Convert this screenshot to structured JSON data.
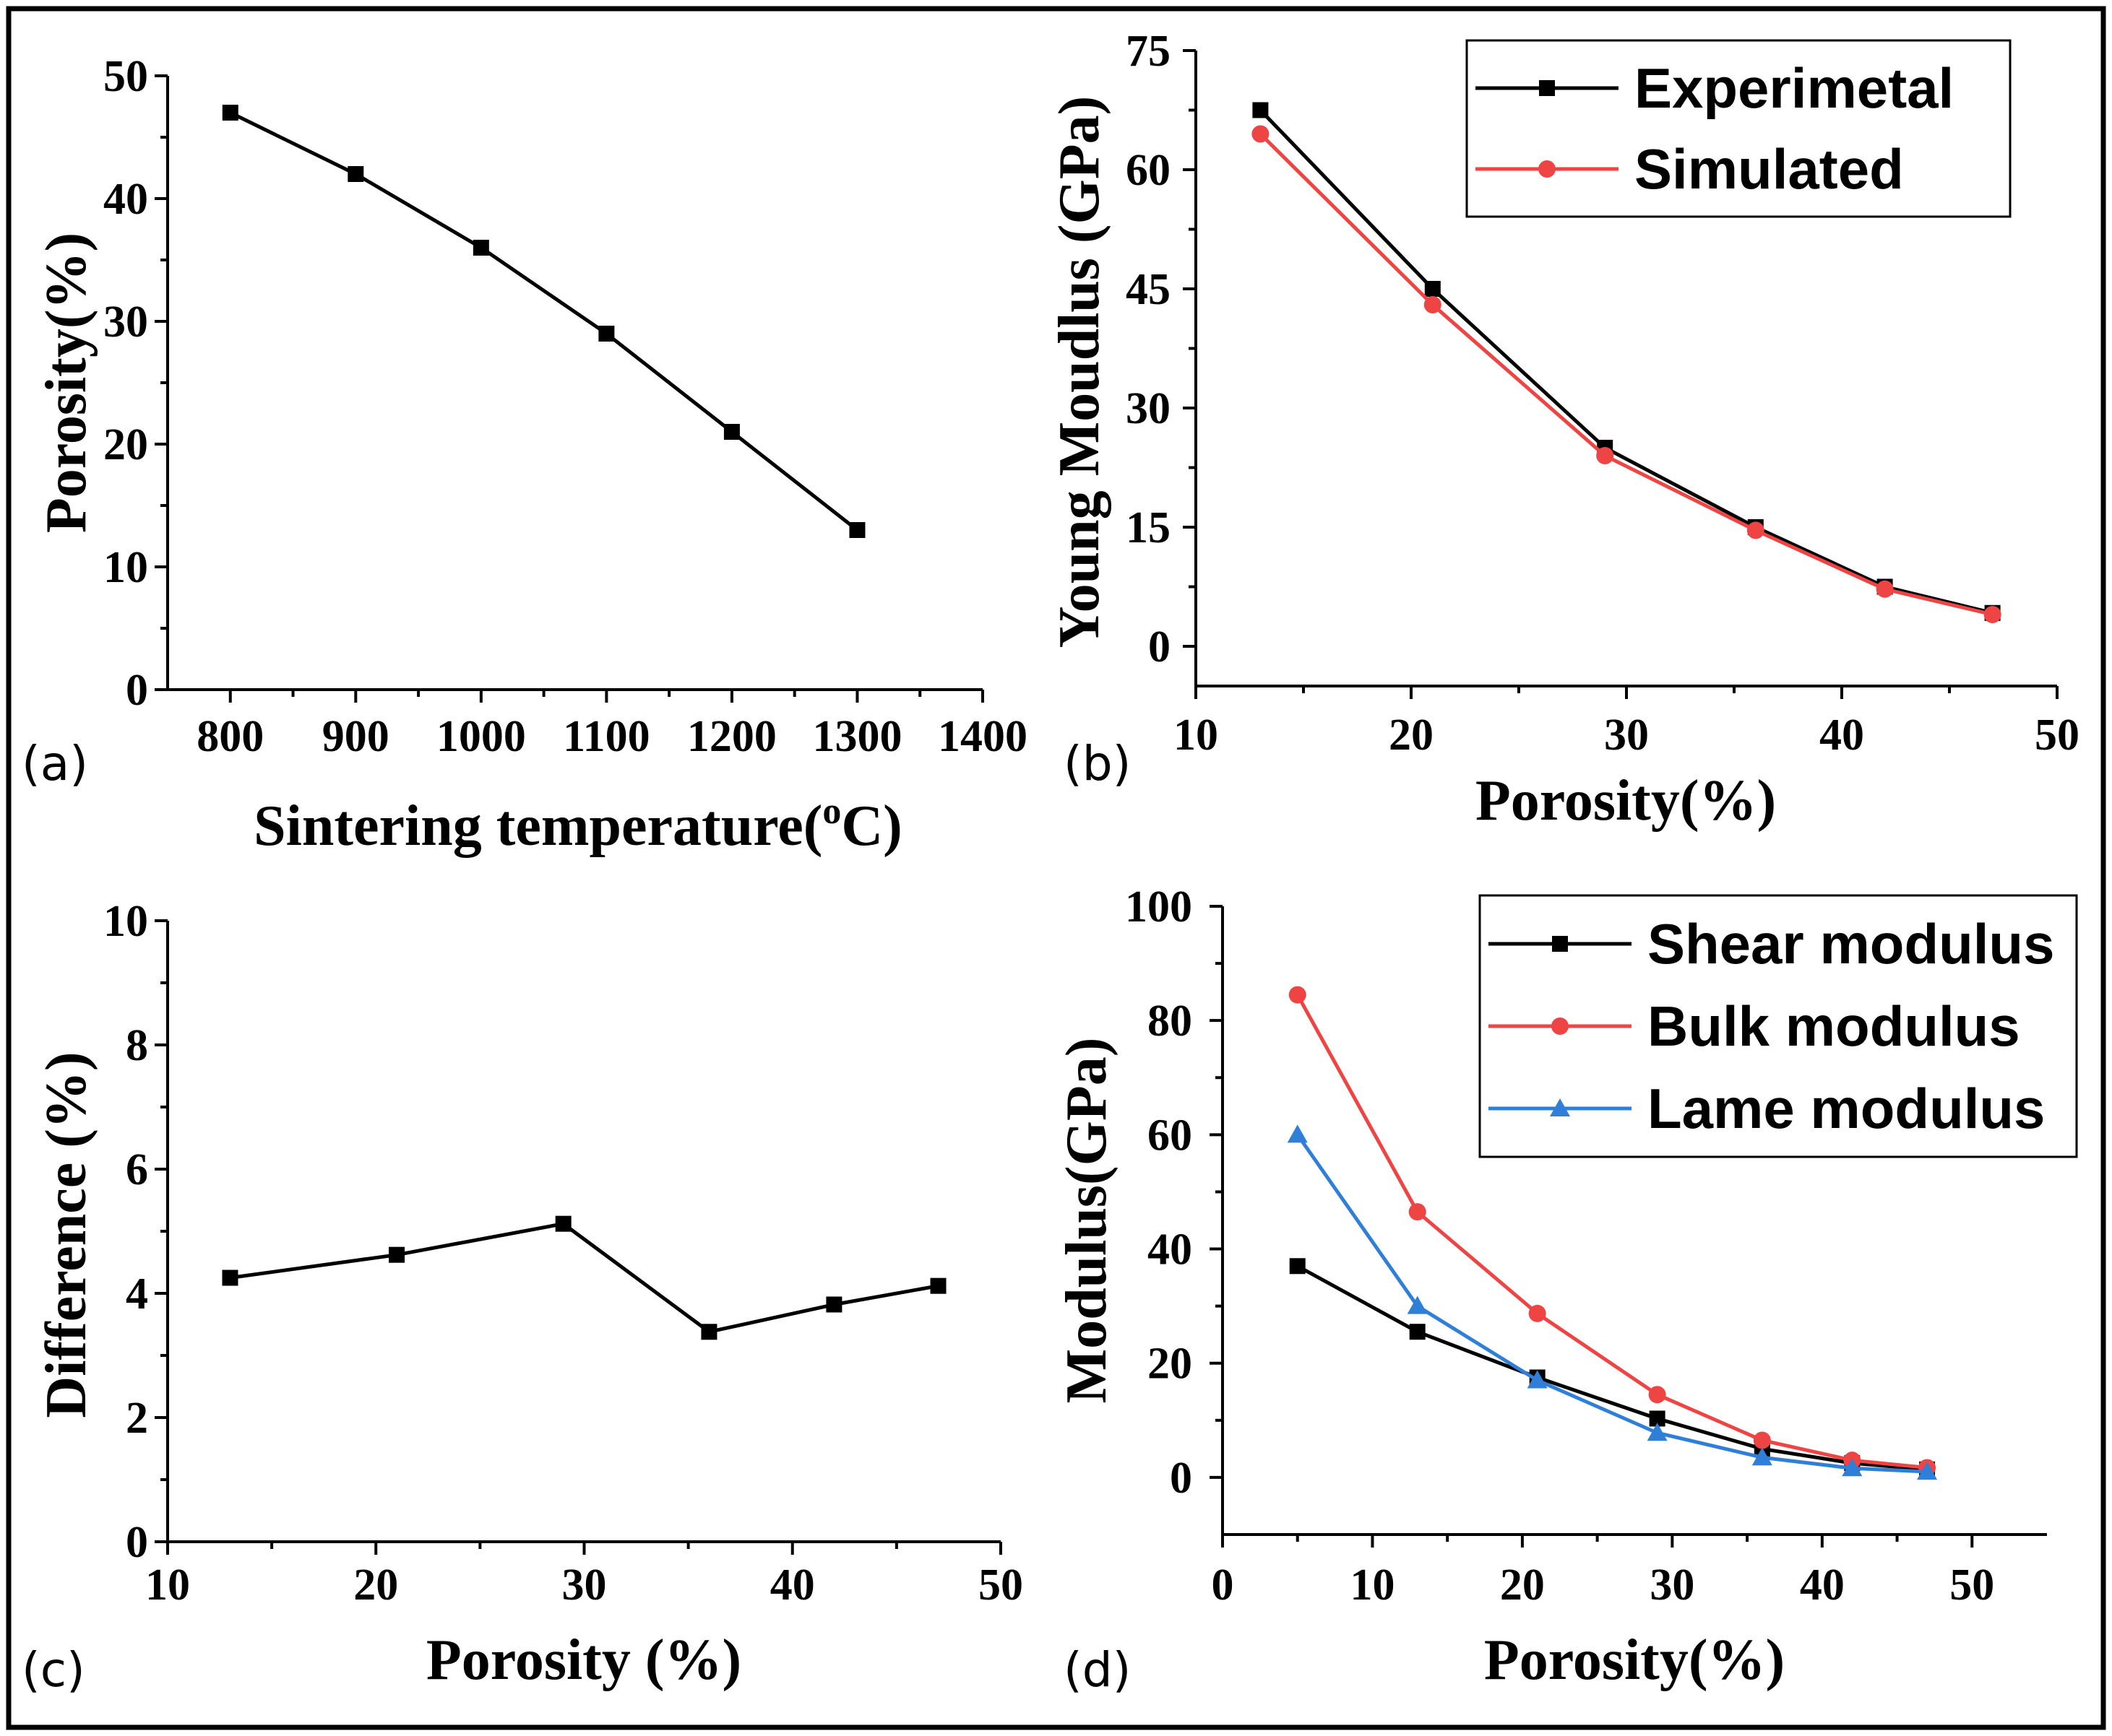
{
  "chart_data": [
    {
      "id": "a",
      "type": "line",
      "panel_label": "(a)",
      "xlabel": "Sintering temperature(",
      "xlabel_sup": "o",
      "xlabel_tail": "C)",
      "ylabel": "Porosity(%)",
      "xlim": [
        750,
        1400
      ],
      "ylim": [
        0,
        50
      ],
      "xticks": [
        800,
        900,
        1000,
        1100,
        1200,
        1300,
        1400
      ],
      "yticks": [
        0,
        10,
        20,
        30,
        40,
        50
      ],
      "series": [
        {
          "name": "Porosity",
          "color": "#000000",
          "marker": "square",
          "x": [
            800,
            900,
            1000,
            1100,
            1200,
            1300
          ],
          "values": [
            47,
            42,
            36,
            29,
            21,
            13
          ]
        }
      ]
    },
    {
      "id": "b",
      "type": "line",
      "panel_label": "(b)",
      "xlabel": "Porosity(%)",
      "ylabel": "Young Moudlus (GPa)",
      "xlim": [
        10,
        50
      ],
      "ylim": [
        -5,
        75
      ],
      "xticks": [
        10,
        20,
        30,
        40,
        50
      ],
      "yticks": [
        0,
        15,
        30,
        45,
        60,
        75
      ],
      "legend": "top-right",
      "series": [
        {
          "name": "Experimetal",
          "color": "#000000",
          "marker": "square",
          "x": [
            13,
            21,
            29,
            36,
            42,
            47
          ],
          "values": [
            67.5,
            45,
            25,
            15,
            7.5,
            4.2
          ]
        },
        {
          "name": "Simulated",
          "color": "#ef4444",
          "marker": "circle",
          "x": [
            13,
            21,
            29,
            36,
            42,
            47
          ],
          "values": [
            64.5,
            43,
            24,
            14.6,
            7.2,
            4
          ]
        }
      ]
    },
    {
      "id": "c",
      "type": "line",
      "panel_label": "(c)",
      "xlabel": "Porosity (%)",
      "ylabel": "Difference (%)",
      "xlim": [
        10,
        50
      ],
      "ylim": [
        0,
        10
      ],
      "xticks": [
        10,
        20,
        30,
        40,
        50
      ],
      "yticks": [
        0,
        2,
        4,
        6,
        8,
        10
      ],
      "series": [
        {
          "name": "Difference",
          "color": "#000000",
          "marker": "square",
          "x": [
            13,
            21,
            29,
            36,
            42,
            47
          ],
          "values": [
            4.25,
            4.62,
            5.12,
            3.38,
            3.82,
            4.12
          ]
        }
      ]
    },
    {
      "id": "d",
      "type": "line",
      "panel_label": "(d)",
      "xlabel": "Porosity(%)",
      "ylabel": "Modulus(GPa)",
      "xlim": [
        0,
        55
      ],
      "ylim": [
        -10,
        100
      ],
      "xticks": [
        0,
        10,
        20,
        30,
        40,
        50
      ],
      "yticks": [
        0,
        20,
        40,
        60,
        80,
        100
      ],
      "legend": "top-right",
      "series": [
        {
          "name": "Shear modulus",
          "color": "#000000",
          "marker": "square",
          "x": [
            5,
            13,
            21,
            29,
            36,
            42,
            47
          ],
          "values": [
            37,
            25.5,
            17.5,
            10.3,
            5,
            2.5,
            1.4
          ]
        },
        {
          "name": "Bulk modulus",
          "color": "#ef4444",
          "marker": "circle",
          "x": [
            5,
            13,
            21,
            29,
            36,
            42,
            47
          ],
          "values": [
            84.5,
            46.5,
            28.7,
            14.5,
            6.5,
            3,
            1.7
          ]
        },
        {
          "name": "Lame modulus",
          "color": "#2f7fd8",
          "marker": "triangle",
          "x": [
            5,
            13,
            21,
            29,
            36,
            42,
            47
          ],
          "values": [
            60,
            30,
            17,
            7.8,
            3.5,
            1.6,
            1
          ]
        }
      ]
    }
  ]
}
